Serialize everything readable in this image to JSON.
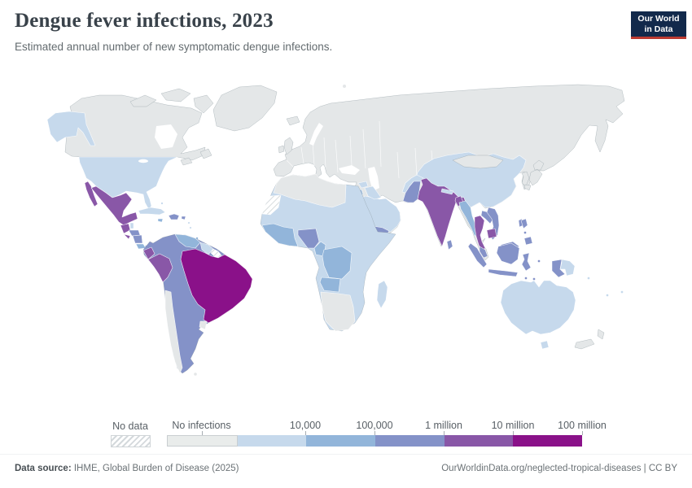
{
  "header": {
    "title": "Dengue fever infections, 2023",
    "subtitle": "Estimated annual number of new symptomatic dengue infections.",
    "logo_line1": "Our World",
    "logo_line2": "in Data"
  },
  "palette": {
    "logo-bg": "#12294b",
    "logo-accent": "#bc3a31",
    "noinf-map": "#e4e7e8",
    "b1": "#c6d9ec",
    "b2": "#92b5da",
    "b3": "#8492c8",
    "b4": "#8957a7",
    "b5": "#8a1189"
  },
  "legend": {
    "no_data_label": "No data",
    "bands": [
      {
        "label": "No infections",
        "color": "#e9eceb",
        "label_pos": "center"
      },
      {
        "label": "10,000",
        "color": "#c6d9ec",
        "label_pos": "right"
      },
      {
        "label": "100,000",
        "color": "#92b5da",
        "label_pos": "right"
      },
      {
        "label": "1 million",
        "color": "#8492c8",
        "label_pos": "right"
      },
      {
        "label": "10 million",
        "color": "#8957a7",
        "label_pos": "right"
      },
      {
        "label": "100 million",
        "color": "#8a1189",
        "label_pos": "right"
      }
    ]
  },
  "footer": {
    "source_label": "Data source:",
    "source_text": " IHME, Global Burden of Disease (2025)",
    "license_text": "OurWorldinData.org/neglected-tropical-diseases | CC BY"
  },
  "chart_data": {
    "type": "choropleth",
    "title": "Dengue fever infections, 2023",
    "unit": "estimated new symptomatic dengue infections per year",
    "scale_bins": [
      "No infections",
      "up to 10,000",
      "10,000–100,000",
      "100,000–1 million",
      "1–10 million",
      "10–100 million",
      "No data"
    ],
    "bin_colors": [
      "#e9eceb",
      "#c6d9ec",
      "#92b5da",
      "#8492c8",
      "#8957a7",
      "#8a1189",
      "hatched"
    ],
    "legend_position": "bottom",
    "regions": {
      "no_data": [
        "Western Sahara",
        "French Guiana"
      ],
      "no_infections": [
        "Canada",
        "Greenland",
        "Iceland",
        "Europe",
        "Russia",
        "Kazakhstan",
        "Central Asia",
        "Mongolia",
        "Turkey",
        "Iran",
        "Morocco",
        "Algeria",
        "Tunisia",
        "Libya",
        "Japan",
        "North Korea",
        "South Korea",
        "New Zealand",
        "Chile",
        "Uruguay",
        "Namibia",
        "Botswana",
        "South Africa",
        "Falkland Islands"
      ],
      "up_to_10k": [
        "United States",
        "Cuba",
        "Bahamas",
        "Belize",
        "Guyana",
        "Suriname",
        "Egypt",
        "Mauritania",
        "Mali",
        "Niger",
        "Chad",
        "Sudan",
        "Ethiopia",
        "Somalia",
        "Kenya",
        "Tanzania",
        "Zambia",
        "Zimbabwe",
        "Mozambique",
        "Madagascar",
        "Saudi Arabia",
        "Oman",
        "Iraq",
        "Syria",
        "Afghanistan",
        "Nepal",
        "China",
        "Papua New Guinea",
        "Australia",
        "Pacific islands"
      ],
      "10k_100k": [
        "Venezuela",
        "Costa Rica",
        "Panama",
        "Jamaica",
        "Haiti",
        "Senegal",
        "Guinea",
        "Cote d'Ivoire",
        "Ghana",
        "Burkina Faso",
        "Cameroon",
        "DR Congo",
        "Angola",
        "Israel/Jordan",
        "Myanmar"
      ],
      "100k_1m": [
        "Colombia",
        "Bolivia",
        "Paraguay",
        "Argentina",
        "Honduras",
        "Nicaragua",
        "Dominican Republic",
        "Puerto Rico",
        "Nigeria",
        "Yemen",
        "Pakistan",
        "Sri Lanka",
        "Laos",
        "Vietnam",
        "Malaysia",
        "Indonesia",
        "Philippines",
        "Taiwan"
      ],
      "1m_10m": [
        "Mexico",
        "Guatemala",
        "El Salvador",
        "Ecuador",
        "Peru",
        "India",
        "Bangladesh",
        "Thailand",
        "Cambodia"
      ],
      "10m_100m": [
        "Brazil"
      ]
    }
  }
}
